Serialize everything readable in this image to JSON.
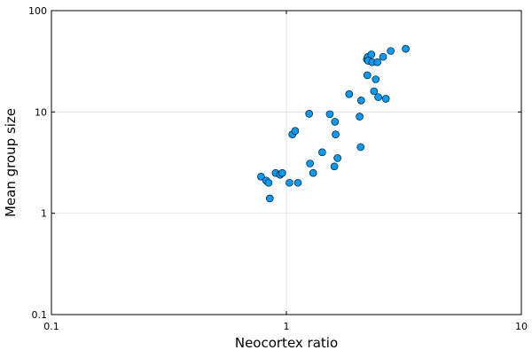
{
  "chart_data": {
    "type": "scatter",
    "xlabel": "Neocortex ratio",
    "ylabel": "Mean group size",
    "xscale": "log10",
    "yscale": "log10",
    "xlim": [
      0.1,
      10
    ],
    "ylim": [
      0.1,
      100
    ],
    "xticks": [
      0.1,
      1,
      10
    ],
    "yticks": [
      0.1,
      1,
      10,
      100
    ],
    "xtick_labels": [
      "0.1",
      "1",
      "10"
    ],
    "ytick_labels": [
      "0.1",
      "1",
      "10",
      "100"
    ],
    "grid": true,
    "legend": "none",
    "marker_color": "#009AFA",
    "marker_edge_color": "#000000",
    "points": [
      {
        "x": 0.78,
        "y": 2.3
      },
      {
        "x": 0.82,
        "y": 2.1
      },
      {
        "x": 0.84,
        "y": 2.0
      },
      {
        "x": 0.85,
        "y": 1.4
      },
      {
        "x": 0.9,
        "y": 2.5
      },
      {
        "x": 0.94,
        "y": 2.4
      },
      {
        "x": 0.96,
        "y": 2.5
      },
      {
        "x": 1.03,
        "y": 2.0
      },
      {
        "x": 1.06,
        "y": 6.0
      },
      {
        "x": 1.09,
        "y": 6.5
      },
      {
        "x": 1.12,
        "y": 2.0
      },
      {
        "x": 1.25,
        "y": 9.6
      },
      {
        "x": 1.26,
        "y": 3.1
      },
      {
        "x": 1.3,
        "y": 2.5
      },
      {
        "x": 1.42,
        "y": 4.0
      },
      {
        "x": 1.53,
        "y": 9.5
      },
      {
        "x": 1.6,
        "y": 2.9
      },
      {
        "x": 1.61,
        "y": 8.0
      },
      {
        "x": 1.62,
        "y": 6.0
      },
      {
        "x": 1.65,
        "y": 3.5
      },
      {
        "x": 1.85,
        "y": 15.0
      },
      {
        "x": 2.05,
        "y": 9.0
      },
      {
        "x": 2.07,
        "y": 4.5
      },
      {
        "x": 2.08,
        "y": 13.0
      },
      {
        "x": 2.2,
        "y": 33.0
      },
      {
        "x": 2.21,
        "y": 23.0
      },
      {
        "x": 2.22,
        "y": 35.0
      },
      {
        "x": 2.23,
        "y": 32.0
      },
      {
        "x": 2.3,
        "y": 37.0
      },
      {
        "x": 2.32,
        "y": 31.0
      },
      {
        "x": 2.36,
        "y": 16.0
      },
      {
        "x": 2.4,
        "y": 21.0
      },
      {
        "x": 2.44,
        "y": 31.0
      },
      {
        "x": 2.46,
        "y": 14.0
      },
      {
        "x": 2.58,
        "y": 35.0
      },
      {
        "x": 2.65,
        "y": 13.5
      },
      {
        "x": 2.78,
        "y": 40.0
      },
      {
        "x": 3.22,
        "y": 42.0
      }
    ]
  }
}
